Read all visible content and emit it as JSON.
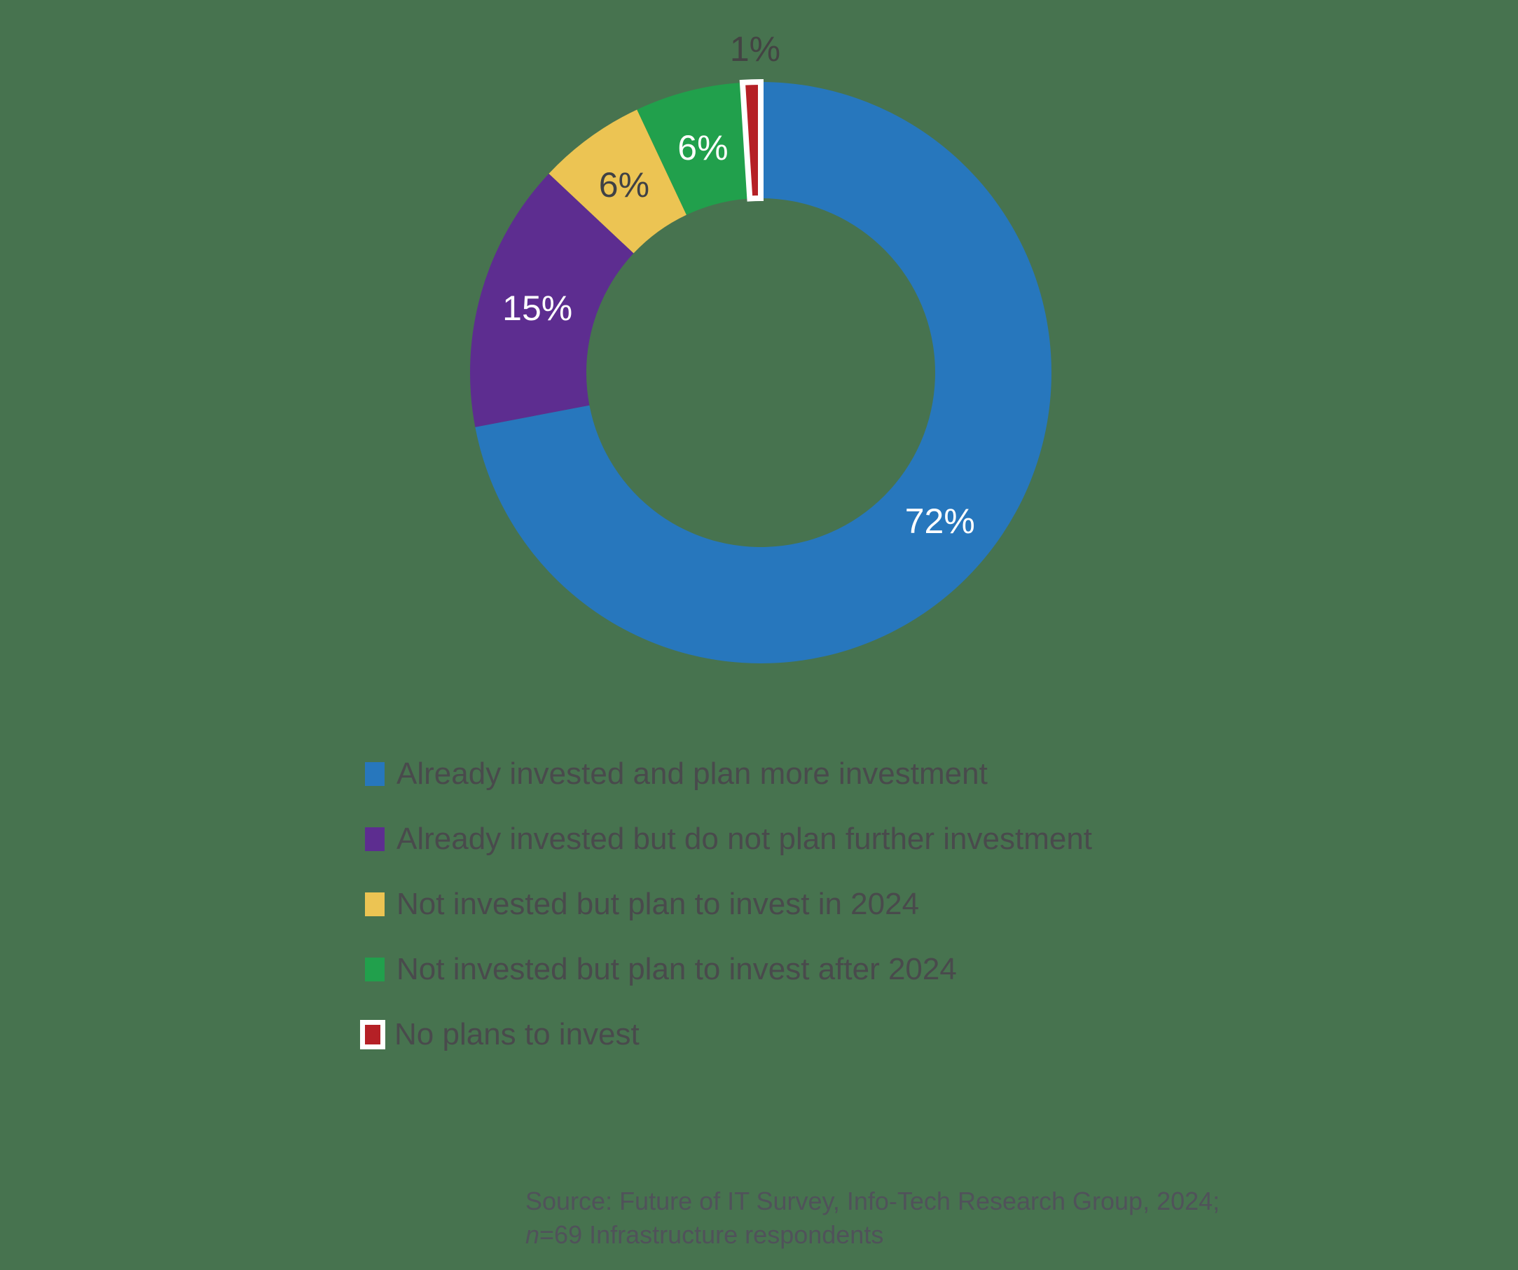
{
  "background_color": "#47734F",
  "chart_data": {
    "type": "donut",
    "title": "",
    "direction": "clockwise",
    "start_angle_deg": 0,
    "inner_radius_ratio": 0.6,
    "legend_position": "bottom-left",
    "grid": false,
    "slices": [
      {
        "label": "Already invested and plan more investment",
        "value": 72,
        "display": "72%",
        "color": "#2777BD",
        "label_color": "#FFFFFF",
        "label_position": "inside",
        "outlined": false
      },
      {
        "label": "Already invested but do not plan further investment",
        "value": 15,
        "display": "15%",
        "color": "#5D2D90",
        "label_color": "#FFFFFF",
        "label_position": "inside",
        "outlined": false
      },
      {
        "label": "Not invested but plan to invest in 2024",
        "value": 6,
        "display": "6%",
        "color": "#ECC453",
        "label_color": "#3F4145",
        "label_position": "inside",
        "outlined": false
      },
      {
        "label": "Not invested but plan to invest after 2024",
        "value": 6,
        "display": "6%",
        "color": "#21A04C",
        "label_color": "#FFFFFF",
        "label_position": "inside",
        "outlined": false
      },
      {
        "label": "No plans to invest",
        "value": 1,
        "display": "1%",
        "color": "#B52026",
        "label_color": "#434343",
        "label_position": "outside",
        "outlined": true,
        "outline_color": "#FFFFFF"
      }
    ]
  },
  "source": {
    "line1": "Source: Future of IT Survey, Info-Tech Research Group, 2024;",
    "line2_italic_prefix": "n",
    "line2_rest": "=69 Infrastructure respondents"
  }
}
